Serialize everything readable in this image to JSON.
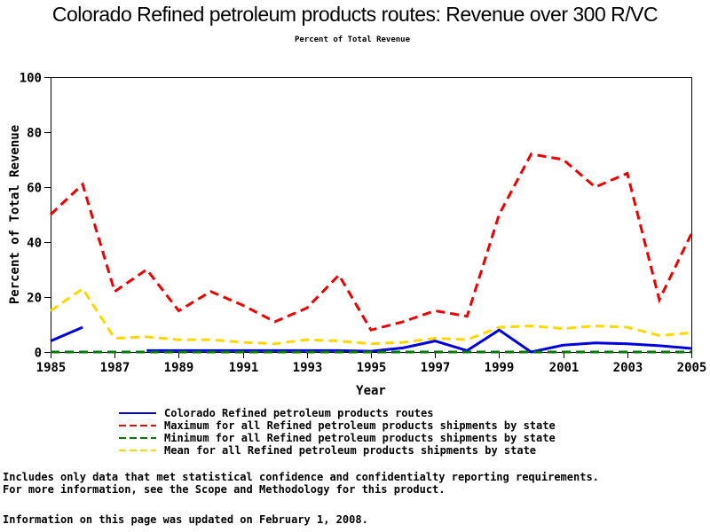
{
  "header": {
    "title": "Colorado Refined petroleum products routes: Revenue over 300 R/VC",
    "subtitle": "Percent of Total Revenue"
  },
  "chart_data": {
    "type": "line",
    "title": "Colorado Refined petroleum products routes: Revenue over 300 R/VC",
    "subtitle": "Percent of Total Revenue",
    "xlabel": "Year",
    "ylabel": "Percent of Total Revenue",
    "ylim": [
      0,
      100
    ],
    "y_ticks": [
      0,
      20,
      40,
      60,
      80,
      100
    ],
    "x_tick_labels": [
      "1985",
      "1987",
      "1989",
      "1991",
      "1993",
      "1995",
      "1997",
      "1999",
      "2001",
      "2003",
      "2005"
    ],
    "grid": "off",
    "legend_position": "bottom",
    "x": [
      1985,
      1986,
      1987,
      1988,
      1989,
      1990,
      1991,
      1992,
      1993,
      1994,
      1995,
      1996,
      1997,
      1998,
      1999,
      2000,
      2001,
      2002,
      2003,
      2004,
      2005
    ],
    "series": [
      {
        "id": "colorado",
        "name": "Colorado Refined petroleum products routes",
        "color": "#0000dd",
        "style": "solid",
        "values": [
          4,
          9,
          null,
          0.5,
          0.5,
          0.5,
          0.5,
          0.5,
          0.5,
          0.5,
          0.3,
          1.5,
          4,
          0.5,
          8,
          0,
          2.5,
          3.3,
          3,
          2.3,
          1.3
        ]
      },
      {
        "id": "maximum",
        "name": "Maximum for all Refined petroleum products shipments by state",
        "color": "#ee0000",
        "style": "dashed",
        "values": [
          50,
          61,
          22,
          30,
          15,
          22,
          17,
          11,
          16,
          28,
          8,
          11,
          15,
          13,
          50,
          72,
          70,
          60,
          65,
          19,
          43
        ]
      },
      {
        "id": "minimum",
        "name": "Minimum for all Refined petroleum products shipments by state",
        "color": "#007700",
        "style": "dashed",
        "values": [
          0,
          0,
          0,
          0,
          0,
          0,
          0,
          0,
          0,
          0,
          0,
          0,
          0,
          0,
          0,
          0,
          0,
          0,
          0,
          0,
          0
        ]
      },
      {
        "id": "mean",
        "name": "Mean for all Refined petroleum products shipments by state",
        "color": "#ffd700",
        "style": "dashed",
        "values": [
          15,
          23,
          5,
          5.5,
          4.5,
          4.5,
          3.5,
          3,
          4.5,
          4,
          3,
          3.5,
          5,
          4.5,
          9,
          9.5,
          8.5,
          9.5,
          9,
          6,
          7
        ]
      }
    ]
  },
  "footnotes": {
    "line1": "Includes only data that met statistical confidence and confidentialty reporting requirements.",
    "line2": "For more information, see the Scope and Methodology for this product.",
    "line3": "Information on this page was updated on February 1, 2008."
  }
}
